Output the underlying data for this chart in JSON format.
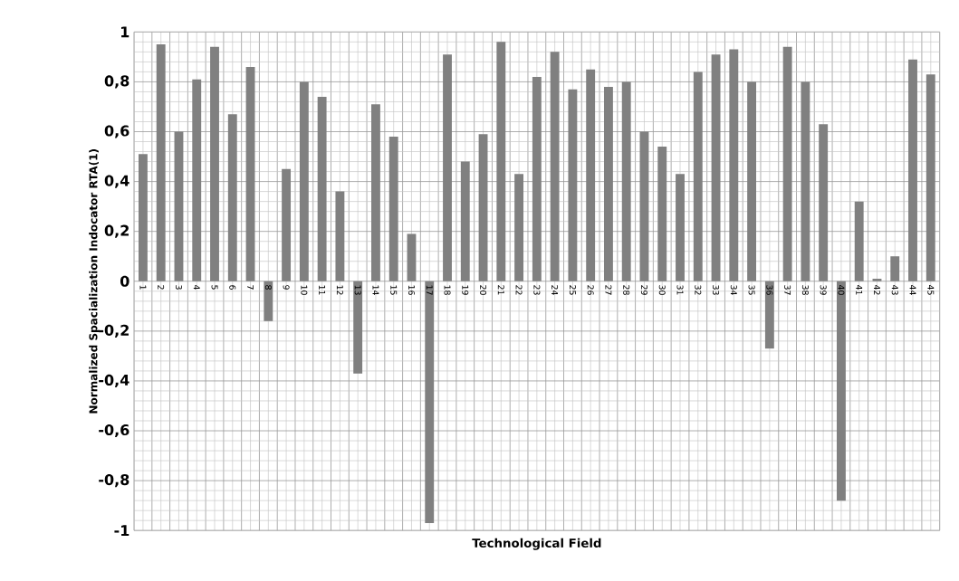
{
  "chart_data": {
    "type": "bar",
    "xlabel": "Technological Field",
    "ylabel": "Normalized Spacialization  Indocator RTA(1)",
    "categories": [
      "1",
      "2",
      "3",
      "4",
      "5",
      "6",
      "7",
      "8",
      "9",
      "10",
      "11",
      "12",
      "13",
      "14",
      "15",
      "16",
      "17",
      "18",
      "19",
      "20",
      "21",
      "22",
      "23",
      "24",
      "25",
      "26",
      "27",
      "28",
      "29",
      "30",
      "31",
      "32",
      "33",
      "34",
      "35",
      "36",
      "37",
      "38",
      "39",
      "40",
      "41",
      "42",
      "43",
      "44",
      "45"
    ],
    "values": [
      0.51,
      0.95,
      0.6,
      0.81,
      0.94,
      0.67,
      0.86,
      -0.16,
      0.45,
      0.8,
      0.74,
      0.36,
      -0.37,
      0.71,
      0.58,
      0.19,
      -0.97,
      0.91,
      0.48,
      0.59,
      0.96,
      0.43,
      0.82,
      0.92,
      0.77,
      0.85,
      0.78,
      0.8,
      0.6,
      0.54,
      0.43,
      0.84,
      0.91,
      0.93,
      0.8,
      -0.27,
      0.94,
      0.8,
      0.63,
      -0.88,
      0.32,
      0.01,
      0.1,
      0.89,
      0.83
    ],
    "color": "#808080",
    "ylim": [
      -1,
      1
    ],
    "yticks": [
      -1,
      {
        "value": -0.8,
        "label": "-0,8"
      },
      {
        "value": -0.6,
        "label": "-0,6"
      },
      {
        "value": -0.4,
        "label": "-0,4"
      },
      {
        "value": -0.2,
        "label": "-0,2"
      },
      0,
      {
        "value": 0.2,
        "label": "0,2"
      },
      {
        "value": 0.4,
        "label": "0,4"
      },
      {
        "value": 0.6,
        "label": "0,6"
      },
      {
        "value": 0.8,
        "label": "0,8"
      },
      1
    ],
    "grid": true
  }
}
